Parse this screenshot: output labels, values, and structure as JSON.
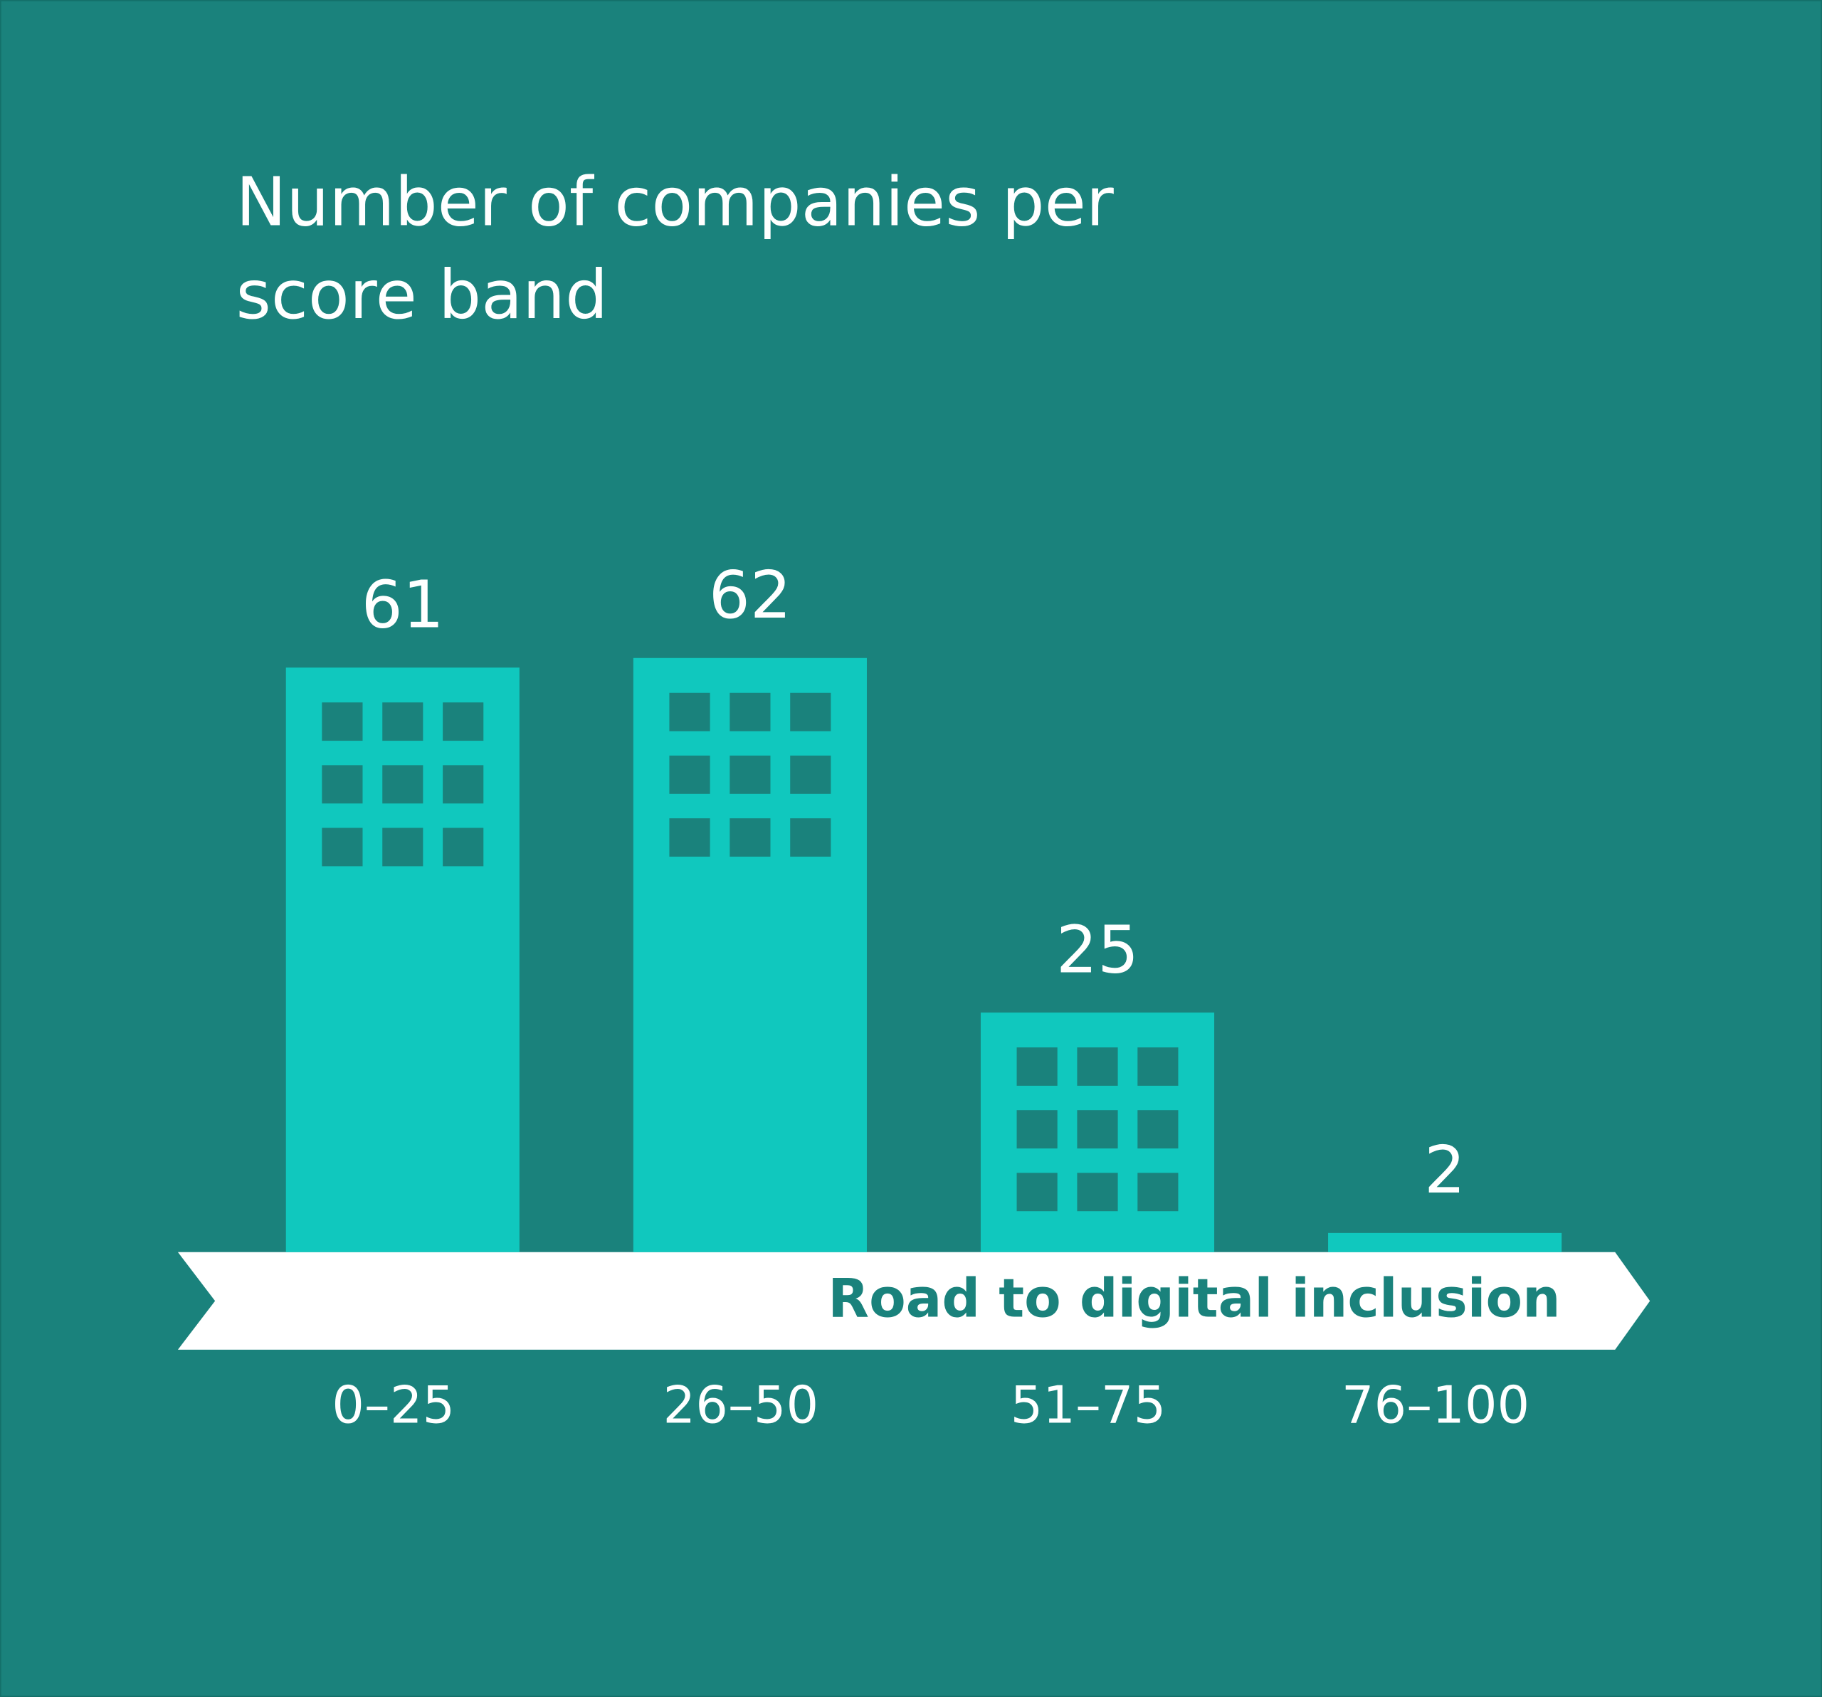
{
  "chart_data": {
    "type": "bar",
    "title": "Number of companies per score band",
    "annotation": "Road to digital inclusion",
    "categories": [
      "0–25",
      "26–50",
      "51–75",
      "76–100"
    ],
    "values": [
      61,
      62,
      25,
      2
    ],
    "color": "#10c8be",
    "ylim": [
      0,
      70
    ]
  }
}
